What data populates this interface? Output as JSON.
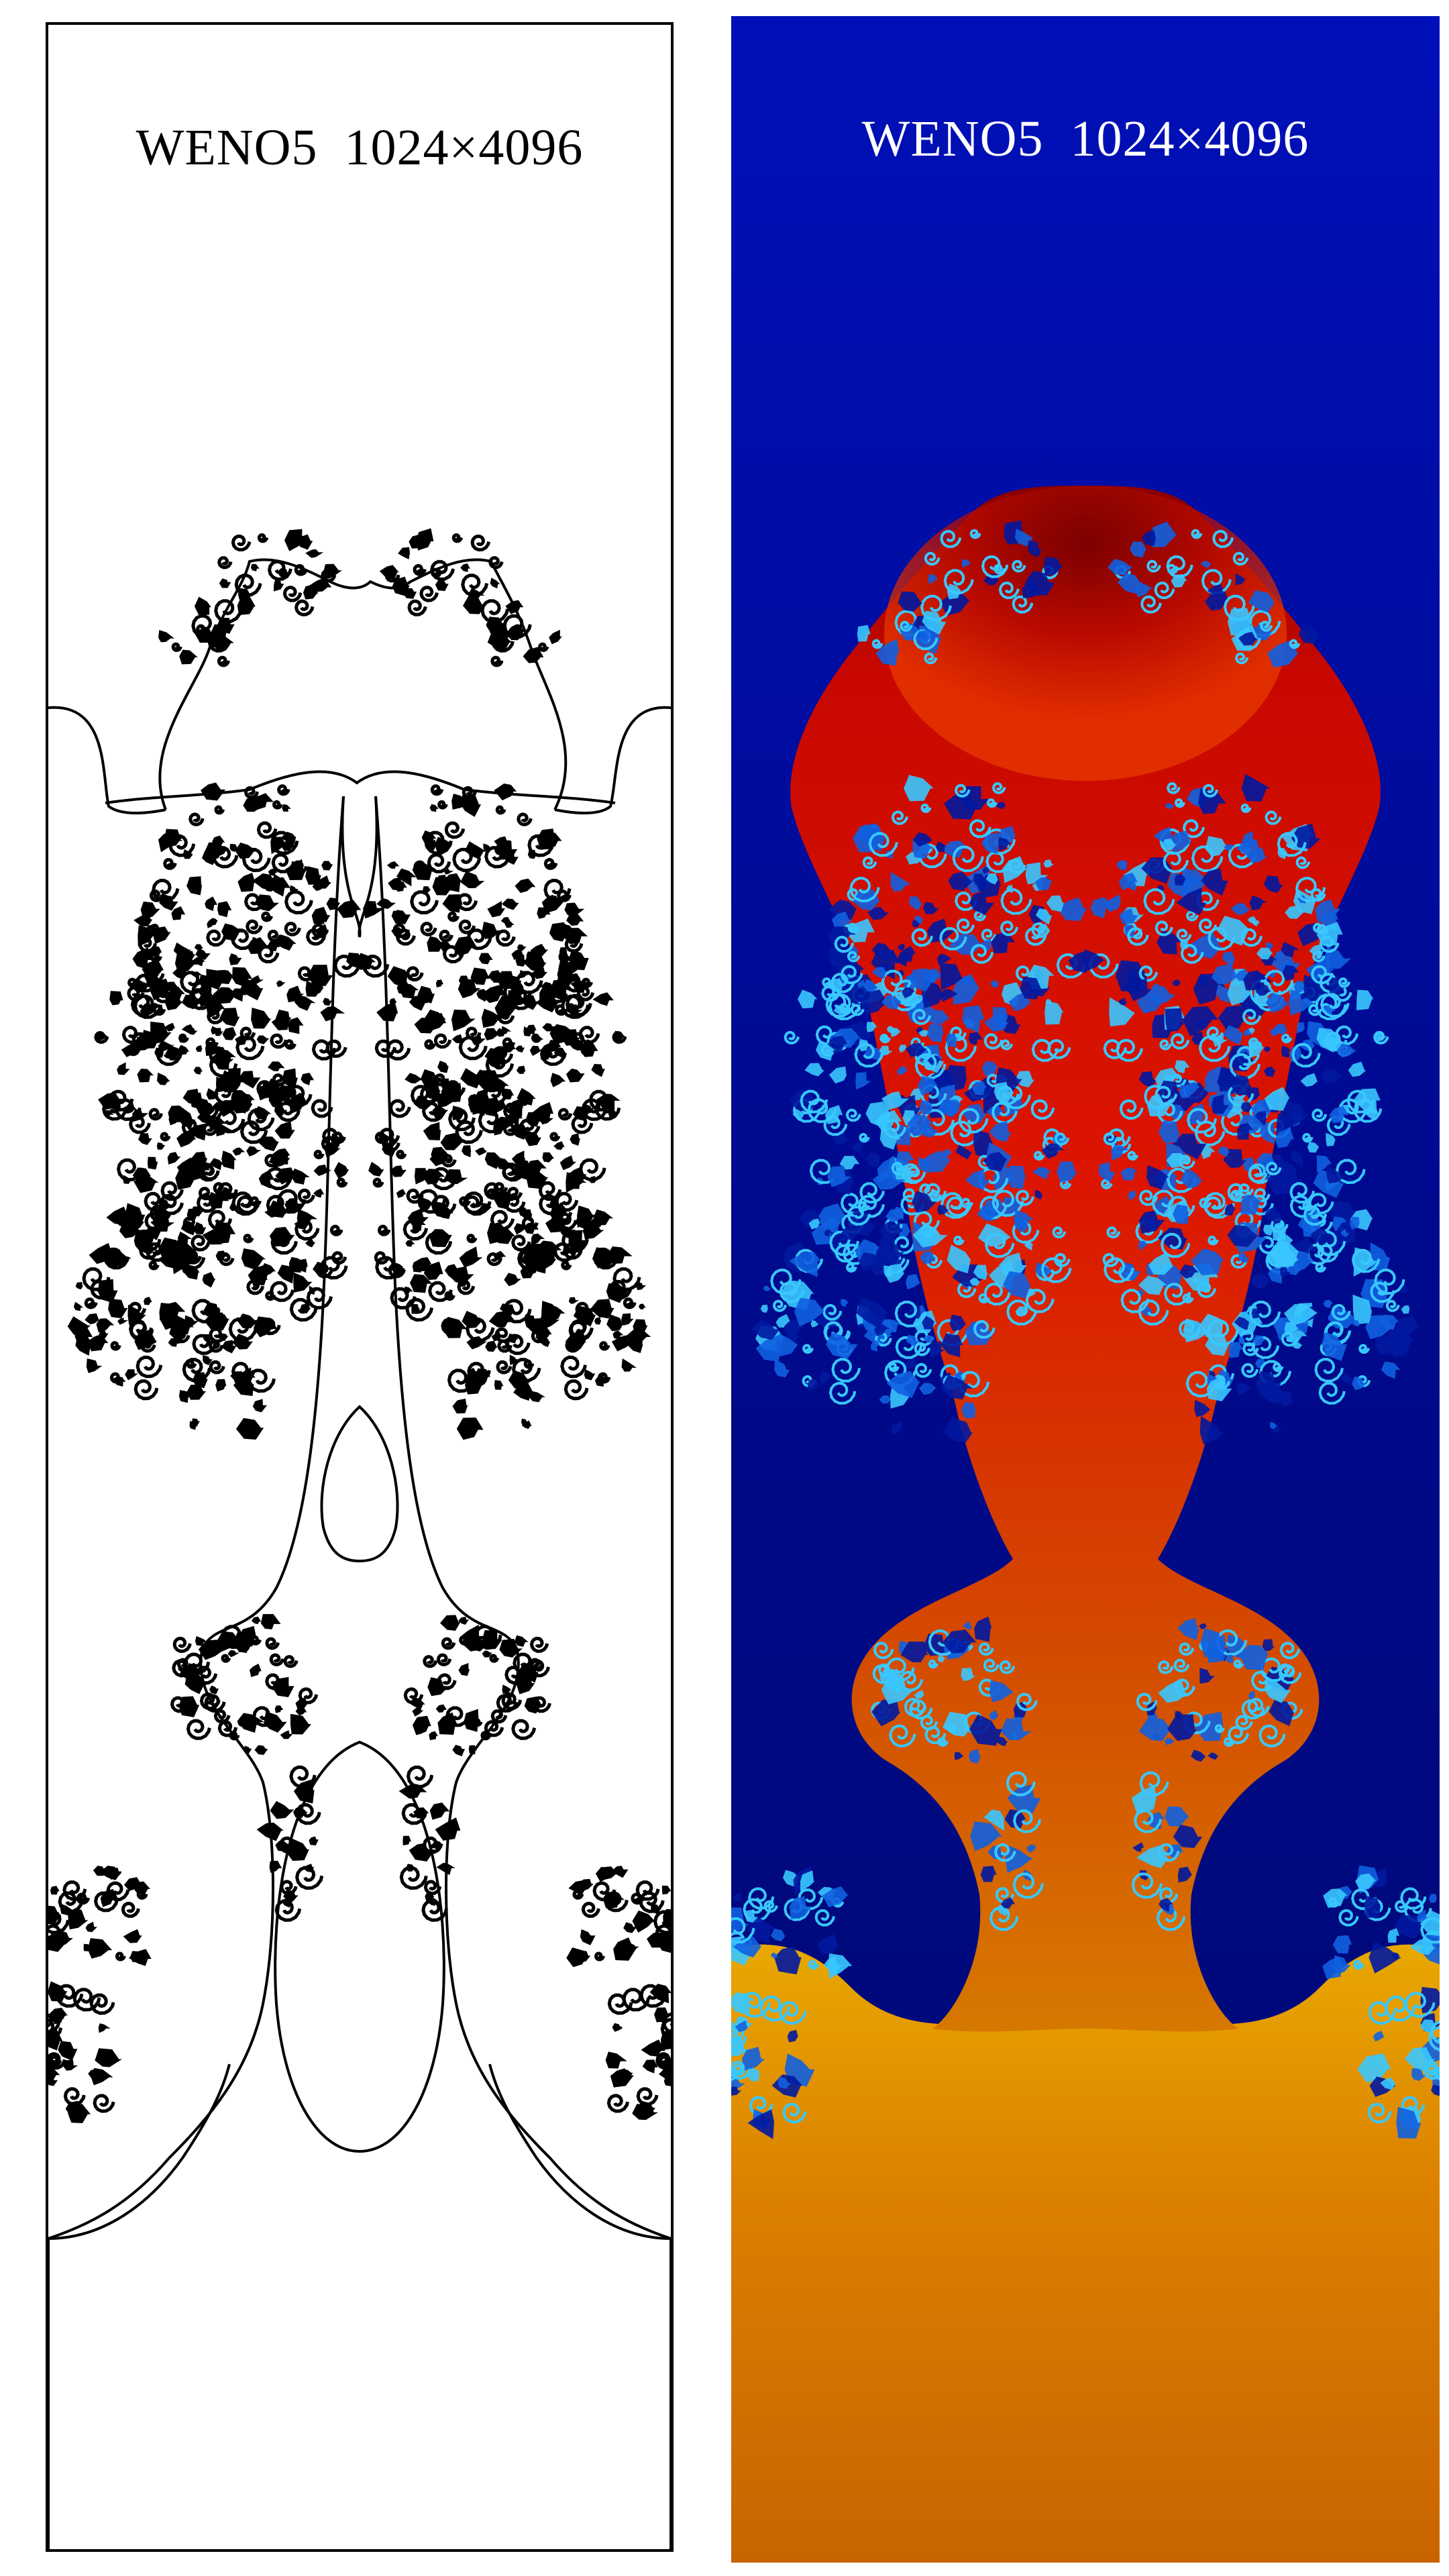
{
  "panels": [
    {
      "title": "WENO5  1024×4096",
      "content": "density contours",
      "line_color": "#000000",
      "background_color": "#ffffff"
    },
    {
      "title": "WENO5  1024×4096",
      "content": "density field, jet colormap",
      "colors": {
        "background_top": "#0010b8",
        "background_bottom": "#00086e",
        "plume_top": "#7a0000",
        "plume_mid": "#dc1500",
        "plume_bottom": "#d67800",
        "mixing_light": "#38c8ff",
        "mixing_mid": "#1060e0",
        "mixing_dark": "#0018a0"
      }
    }
  ]
}
